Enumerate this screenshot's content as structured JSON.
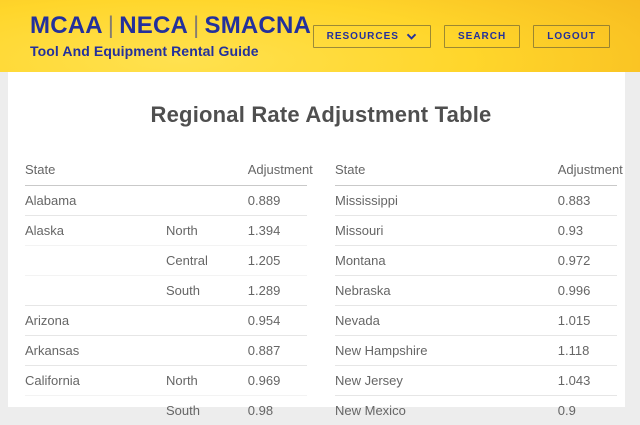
{
  "header": {
    "brand_parts": [
      "MCAA",
      "NECA",
      "SMACNA"
    ],
    "brand_separator": "|",
    "subtitle": "Tool And Equipment Rental Guide",
    "buttons": [
      {
        "label": "RESOURCES",
        "chevron": true
      },
      {
        "label": "SEARCH",
        "chevron": false
      },
      {
        "label": "LOGOUT",
        "chevron": false
      }
    ]
  },
  "main": {
    "title": "Regional Rate Adjustment Table"
  },
  "tables": [
    {
      "columns": {
        "state": "State",
        "region": "",
        "adjustment": "Adjustment"
      },
      "rows": [
        {
          "state": "Alabama",
          "region": "",
          "adjustment": "0.889"
        },
        {
          "state": "Alaska",
          "region": "North",
          "adjustment": "1.394"
        },
        {
          "state": "",
          "region": "Central",
          "adjustment": "1.205"
        },
        {
          "state": "",
          "region": "South",
          "adjustment": "1.289"
        },
        {
          "state": "Arizona",
          "region": "",
          "adjustment": "0.954"
        },
        {
          "state": "Arkansas",
          "region": "",
          "adjustment": "0.887"
        },
        {
          "state": "California",
          "region": "North",
          "adjustment": "0.969"
        },
        {
          "state": "",
          "region": "South",
          "adjustment": "0.98"
        }
      ]
    },
    {
      "columns": {
        "state": "State",
        "region": "",
        "adjustment": "Adjustment"
      },
      "rows": [
        {
          "state": "Mississippi",
          "region": "",
          "adjustment": "0.883"
        },
        {
          "state": "Missouri",
          "region": "",
          "adjustment": "0.93"
        },
        {
          "state": "Montana",
          "region": "",
          "adjustment": "0.972"
        },
        {
          "state": "Nebraska",
          "region": "",
          "adjustment": "0.996"
        },
        {
          "state": "Nevada",
          "region": "",
          "adjustment": "1.015"
        },
        {
          "state": "New Hampshire",
          "region": "",
          "adjustment": "1.118"
        },
        {
          "state": "New Jersey",
          "region": "",
          "adjustment": "1.043"
        },
        {
          "state": "New Mexico",
          "region": "",
          "adjustment": "0.9"
        }
      ]
    }
  ],
  "colors": {
    "brand_blue": "#23309c",
    "header_yellow_bright": "#ffd62b",
    "header_yellow_dark": "#ee9f15",
    "title_gray": "#4f4f4f",
    "table_text": "#666666",
    "page_background": "#ededed"
  }
}
